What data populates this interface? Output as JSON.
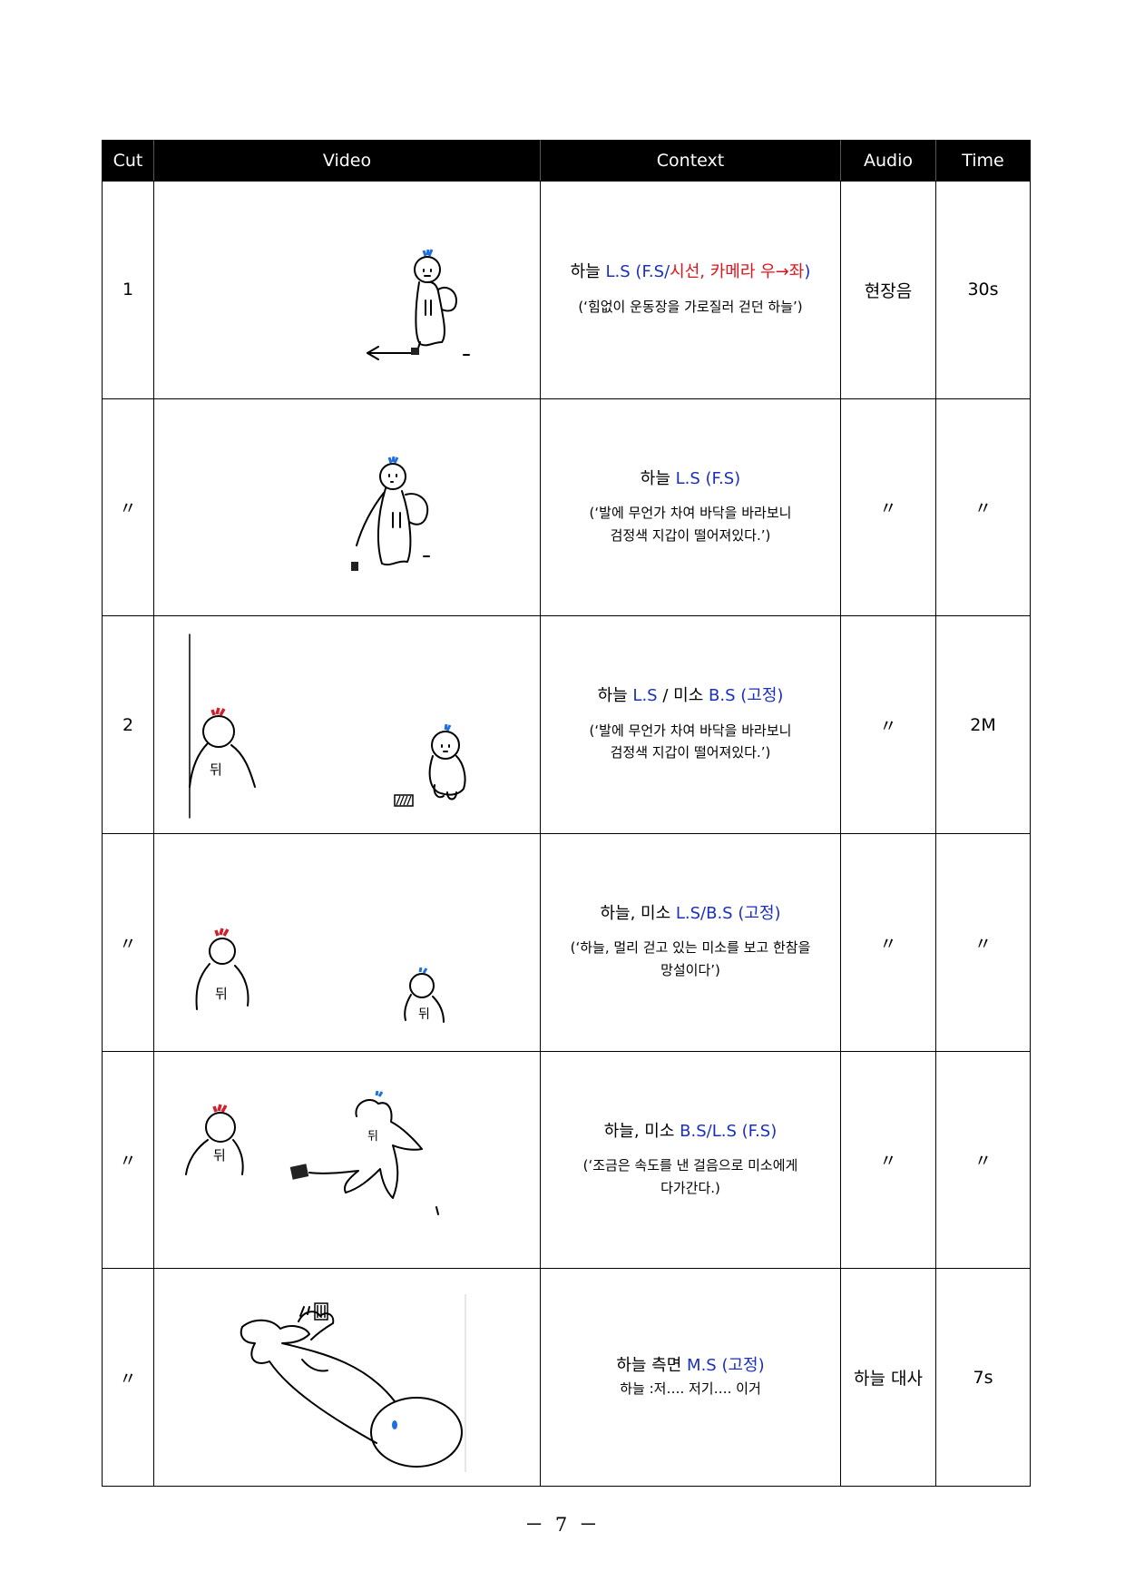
{
  "headers": {
    "cut": "Cut",
    "video": "Video",
    "context": "Context",
    "audio": "Audio",
    "time": "Time"
  },
  "rows": [
    {
      "cut": "1",
      "shot": {
        "subject": "하늘",
        "size": "L.S",
        "open": "(",
        "blue_part": "F.S/",
        "red_part": "시선, 카메라 우→좌",
        "close": ")"
      },
      "description": "(‘힘없이 운동장을 가로질러 걷던 하늘’)",
      "audio": "현장음",
      "time": "30s"
    },
    {
      "cut": "〃",
      "shot": {
        "subject": "하늘",
        "size": "L.S (F.S)"
      },
      "description_lines": [
        "(‘발에 무언가 차여 바닥을 바라보니",
        "검정색 지갑이 떨어져있다.’)"
      ],
      "audio": "〃",
      "time": "〃"
    },
    {
      "cut": "2",
      "shot": {
        "subject": "하늘",
        "size": "L.S",
        "sep": "/",
        "subject2": "미소",
        "size2": "B.S",
        "mode": "(고정)"
      },
      "description_lines": [
        "(‘발에 무언가 차여 바닥을 바라보니",
        "검정색 지갑이 떨어져있다.’)"
      ],
      "audio": "〃",
      "time": "2M"
    },
    {
      "cut": "〃",
      "shot": {
        "subject": "하늘, 미소",
        "size": "L.S/B.S",
        "mode": "(고정)"
      },
      "description_lines": [
        "(‘하늘, 멀리 걷고 있는 미소를 보고 한참을",
        "망설이다’)"
      ],
      "audio": "〃",
      "time": "〃"
    },
    {
      "cut": "〃",
      "shot": {
        "subject": "하늘, 미소",
        "size": "B.S/L.S (F.S)"
      },
      "description_lines": [
        "(‘조금은 속도를 낸 걸음으로 미소에게",
        "다가간다.)"
      ],
      "audio": "〃",
      "time": "〃"
    },
    {
      "cut": "〃",
      "shot": {
        "subject": "하늘 측면",
        "size": "M.S",
        "mode": "(고정)"
      },
      "dialogue": "하늘 :저…. 저기…. 이거",
      "audio": "하늘 대사",
      "time": "7s"
    }
  ],
  "sketch_labels": {
    "back": "뒤"
  },
  "colors": {
    "shot_blue": "#1a2fbd",
    "direction_red": "#e0121b",
    "hair_blue": "#1f6fe0",
    "hair_red": "#d0202a"
  },
  "page_number": "－ 7 －"
}
